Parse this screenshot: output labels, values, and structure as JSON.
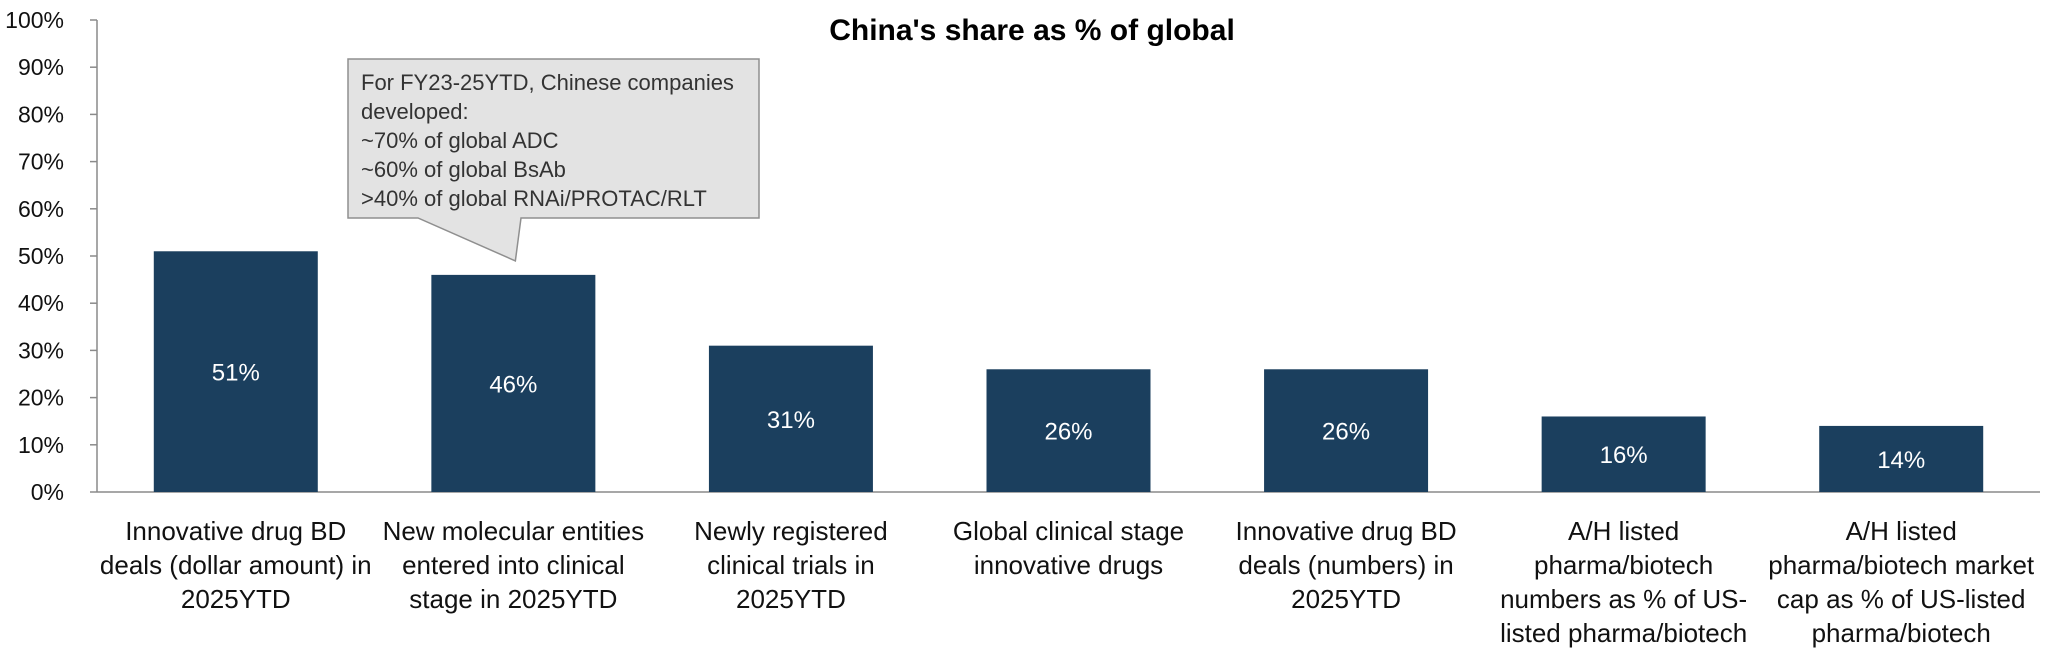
{
  "chart_data": {
    "type": "bar",
    "title": "China's share as % of global",
    "categories": [
      "Innovative drug BD deals (dollar amount) in 2025YTD",
      "New molecular entities entered into clinical stage in 2025YTD",
      "Newly registered clinical trials in 2025YTD",
      "Global clinical stage innovative drugs",
      "Innovative drug BD deals (numbers) in 2025YTD",
      "A/H listed pharma/biotech numbers as % of US-listed pharma/biotech",
      "A/H listed pharma/biotech market cap as % of US-listed pharma/biotech"
    ],
    "category_lines": [
      [
        "Innovative drug BD",
        "deals (dollar amount) in",
        "2025YTD"
      ],
      [
        "New molecular entities",
        "entered into clinical",
        "stage in 2025YTD"
      ],
      [
        "Newly registered",
        "clinical trials in",
        "2025YTD"
      ],
      [
        "Global clinical stage",
        "innovative drugs"
      ],
      [
        "Innovative drug BD",
        "deals (numbers) in",
        "2025YTD"
      ],
      [
        "A/H listed",
        "pharma/biotech",
        "numbers as % of US-",
        "listed pharma/biotech"
      ],
      [
        "A/H listed",
        "pharma/biotech market",
        "cap as % of US-listed",
        "pharma/biotech"
      ]
    ],
    "values": [
      51,
      46,
      31,
      26,
      26,
      16,
      14
    ],
    "value_labels": [
      "51%",
      "46%",
      "31%",
      "26%",
      "26%",
      "16%",
      "14%"
    ],
    "ylim": [
      0,
      100
    ],
    "yticks": [
      "0%",
      "10%",
      "20%",
      "30%",
      "40%",
      "50%",
      "60%",
      "70%",
      "80%",
      "90%",
      "100%"
    ],
    "xlabel": "",
    "ylabel": "",
    "grid": false,
    "legend": "none",
    "bar_color": "#1b3f5e",
    "annotation": {
      "target_category_index": 1,
      "lines": [
        "For FY23-25YTD, Chinese companies",
        "developed:",
        "~70% of global ADC",
        "~60% of global BsAb",
        ">40% of global RNAi/PROTAC/RLT"
      ]
    }
  }
}
